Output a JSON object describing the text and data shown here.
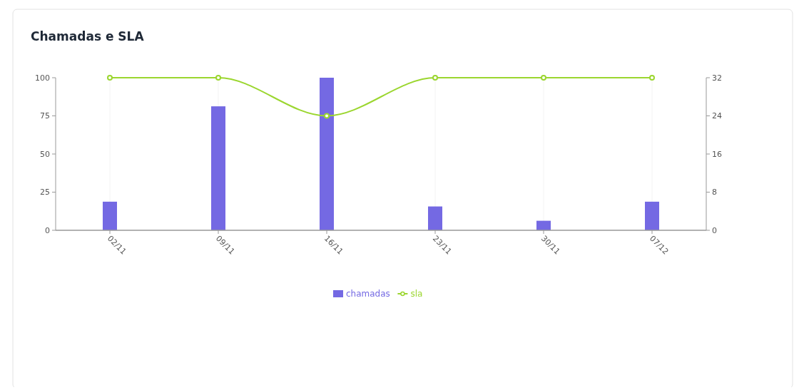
{
  "chart_data": {
    "type": "bar",
    "title": "Chamadas e SLA",
    "categories": [
      "02/11",
      "09/11",
      "16/11",
      "23/11",
      "30/11",
      "07/12"
    ],
    "series": [
      {
        "name": "chamadas",
        "color": "#7469e3",
        "axis": "y2",
        "values": [
          6,
          26,
          32,
          5,
          2,
          6
        ]
      },
      {
        "name": "sla",
        "type": "line",
        "color": "#9bd62f",
        "axis": "y",
        "values": [
          100,
          100,
          75,
          100,
          100,
          100
        ]
      }
    ],
    "ylim": [
      0,
      100
    ],
    "yticks": [
      0,
      25,
      50,
      75,
      100
    ],
    "y2lim": [
      0,
      32
    ],
    "y2ticks": [
      0,
      8,
      16,
      24,
      32
    ],
    "grid": "x",
    "legend": "bottom",
    "marker": "circle"
  }
}
